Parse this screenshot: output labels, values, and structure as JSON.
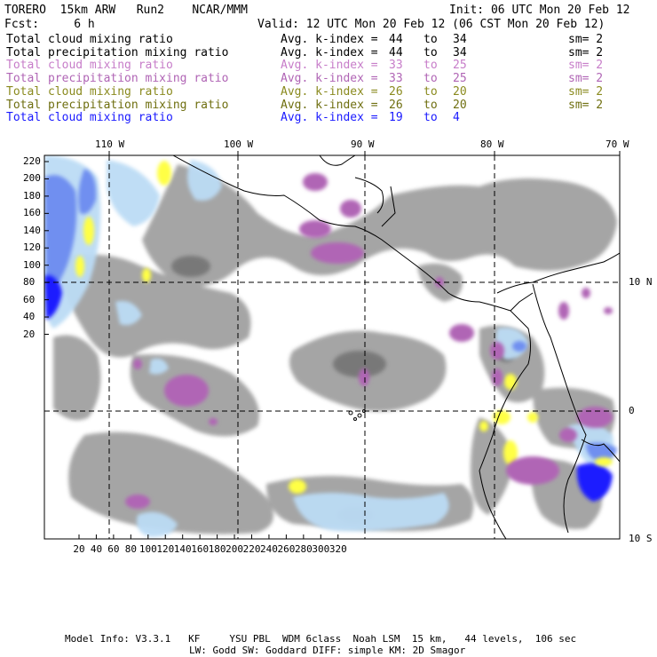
{
  "header": {
    "line1_left": "TORERO  15km ARW   Run2    NCAR/MMM",
    "line1_right": "Init: 06 UTC Mon 20 Feb 12",
    "line2_left": "Fcst:     6 h",
    "line2_right": "Valid: 12 UTC Mon 20 Feb 12 (06 CST Mon 20 Feb 12)"
  },
  "legend": [
    {
      "field": "Total cloud mixing ratio",
      "avg": "Avg. k-index =",
      "hi": "44",
      "to": "to",
      "lo": "34",
      "sm": "sm= 2",
      "color": "#000000"
    },
    {
      "field": "Total precipitation mixing ratio",
      "avg": "Avg. k-index =",
      "hi": "44",
      "to": "to",
      "lo": "34",
      "sm": "sm= 2",
      "color": "#000000"
    },
    {
      "field": "Total cloud mixing ratio",
      "avg": "Avg. k-index =",
      "hi": "33",
      "to": "to",
      "lo": "25",
      "sm": "sm= 2",
      "color": "#c77dc9"
    },
    {
      "field": "Total precipitation mixing ratio",
      "avg": "Avg. k-index =",
      "hi": "33",
      "to": "to",
      "lo": "25",
      "sm": "sm= 2",
      "color": "#b065b5"
    },
    {
      "field": "Total cloud mixing ratio",
      "avg": "Avg. k-index =",
      "hi": "26",
      "to": "to",
      "lo": "20",
      "sm": "sm= 2",
      "color": "#8a8a1e"
    },
    {
      "field": "Total precipitation mixing ratio",
      "avg": "Avg. k-index =",
      "hi": "26",
      "to": "to",
      "lo": "20",
      "sm": "sm= 2",
      "color": "#6f6f10"
    },
    {
      "field": "Total cloud mixing ratio",
      "avg": "Avg. k-index =",
      "hi": "19",
      "to": "to",
      "lo": "4",
      "sm": "",
      "color": "#1a1aff"
    }
  ],
  "top_lon_labels": [
    "110 W",
    "100 W",
    "90 W",
    "80 W",
    "70 W"
  ],
  "right_lat_labels": [
    "10 N",
    "0",
    "10 S"
  ],
  "left_y_ticks": [
    "220",
    "200",
    "180",
    "160",
    "140",
    "120",
    "100",
    "80",
    "60",
    "40",
    "20"
  ],
  "bottom_x_ticks": [
    "20",
    "40",
    "60",
    "80",
    "100",
    "120",
    "140",
    "160",
    "180",
    "200",
    "220",
    "240",
    "260",
    "280",
    "300",
    "320"
  ],
  "footer": {
    "line1": "Model Info: V3.3.1   KF     YSU PBL  WDM 6class  Noah LSM  15 km,   44 levels,  106 sec",
    "line2": "LW: Godd SW: Goddard DIFF: simple KM: 2D Smagor"
  },
  "colors": {
    "gray_cloud": "#9e9e9e",
    "gray_dark": "#6e6e6e",
    "purple": "#b065b5",
    "yellow": "#ffff44",
    "light_blue": "#bcdcf5",
    "mid_blue": "#6f8ff0",
    "dark_blue": "#1a1aff"
  }
}
